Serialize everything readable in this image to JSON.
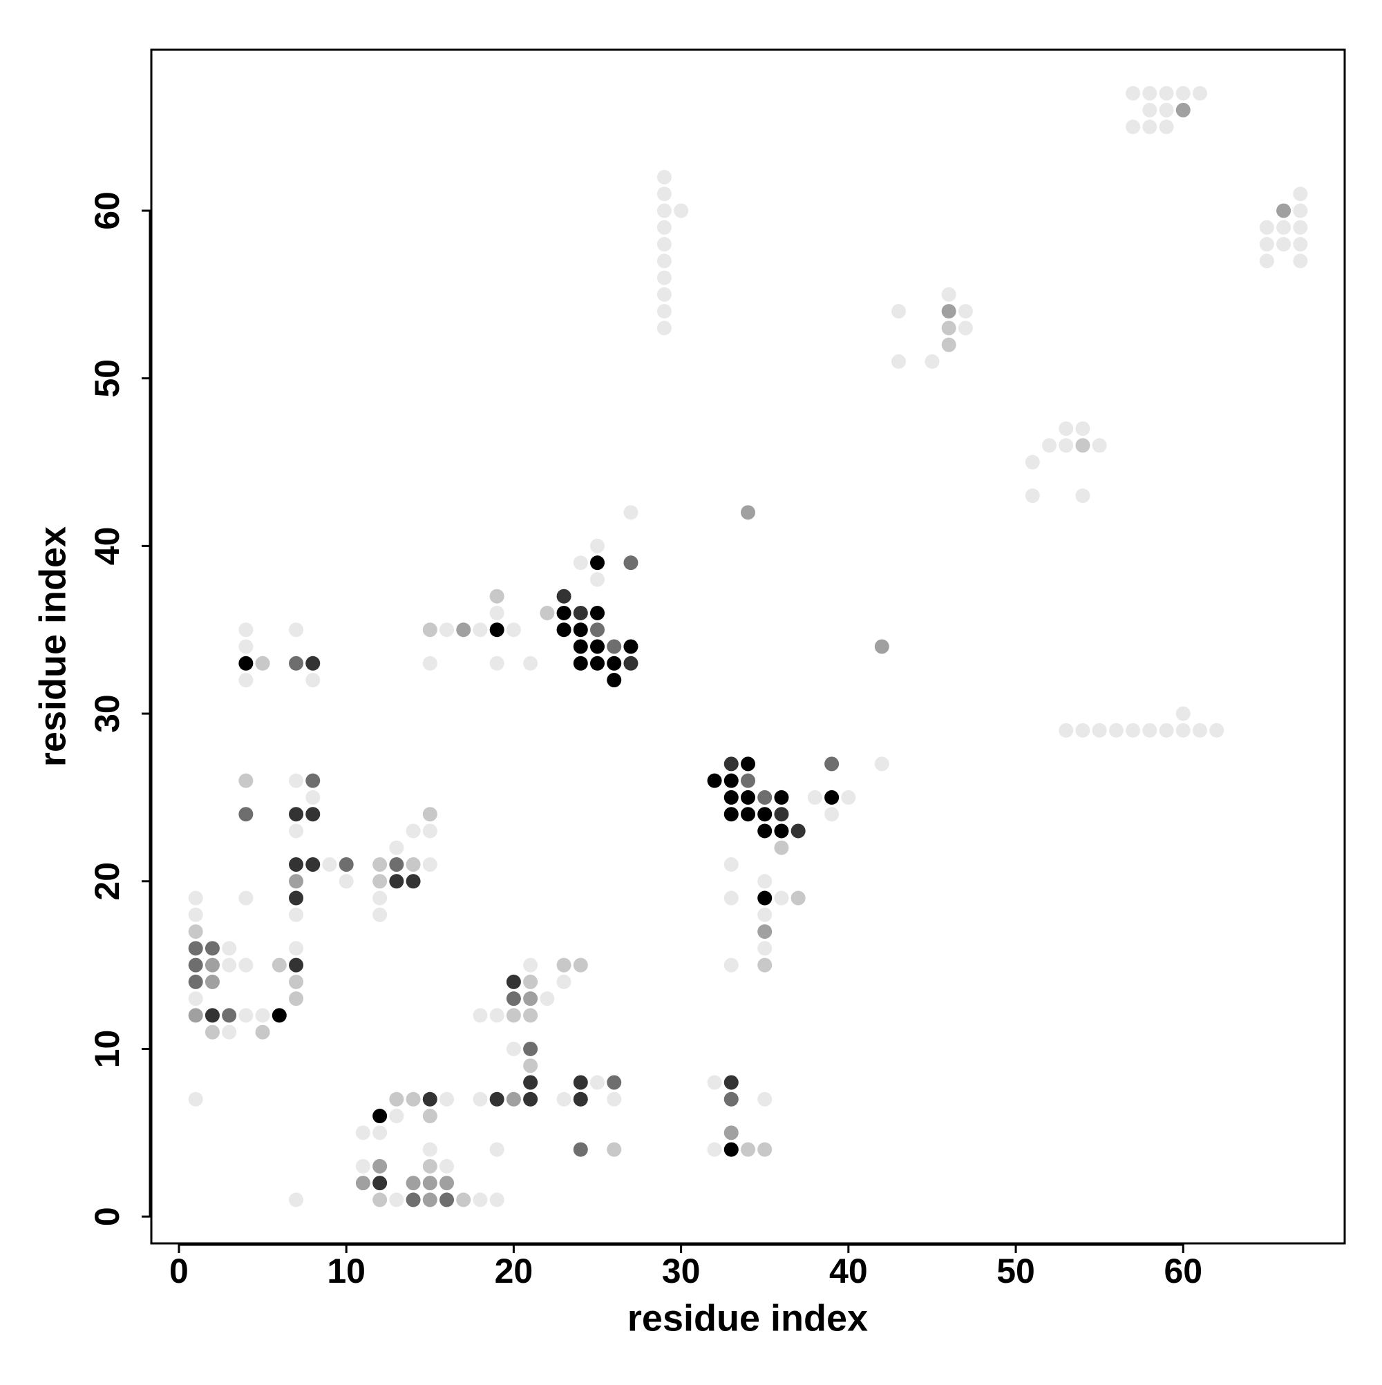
{
  "chart_data": {
    "type": "scatter",
    "xlabel": "residue index",
    "ylabel": "residue index",
    "xlim": [
      -1.65,
      69.65
    ],
    "ylim": [
      -1.6,
      69.6
    ],
    "xticks": [
      0,
      10,
      20,
      30,
      40,
      50,
      60
    ],
    "yticks": [
      0,
      10,
      20,
      30,
      40,
      50,
      60
    ],
    "grid": false,
    "series": [
      {
        "color": "#000000",
        "x": [
          33,
          12,
          6,
          35,
          35,
          36,
          33,
          34,
          35,
          33,
          34,
          36,
          39,
          32,
          33,
          34,
          26,
          4,
          24,
          25,
          26,
          24,
          25,
          27,
          19,
          23,
          24,
          23,
          25,
          25
        ],
        "y": [
          4,
          6,
          12,
          19,
          23,
          23,
          24,
          24,
          24,
          25,
          25,
          25,
          25,
          26,
          26,
          27,
          32,
          33,
          33,
          33,
          33,
          34,
          34,
          34,
          35,
          35,
          35,
          36,
          36,
          39
        ]
      },
      {
        "color": "#333333",
        "x": [
          12,
          15,
          19,
          21,
          24,
          21,
          24,
          33,
          2,
          20,
          7,
          7,
          13,
          14,
          7,
          8,
          37,
          7,
          8,
          36,
          33,
          8,
          27,
          24,
          23
        ],
        "y": [
          2,
          7,
          7,
          7,
          7,
          8,
          8,
          8,
          12,
          14,
          15,
          19,
          20,
          20,
          21,
          21,
          23,
          24,
          24,
          24,
          27,
          33,
          33,
          36,
          37
        ]
      },
      {
        "color": "#6e6e6e",
        "x": [
          14,
          16,
          24,
          33,
          26,
          21,
          3,
          20,
          1,
          1,
          1,
          2,
          10,
          13,
          4,
          35,
          8,
          34,
          39,
          7,
          26,
          25,
          27
        ],
        "y": [
          1,
          1,
          4,
          7,
          8,
          10,
          12,
          13,
          14,
          15,
          16,
          16,
          21,
          21,
          24,
          25,
          26,
          26,
          27,
          33,
          34,
          35,
          39
        ]
      },
      {
        "color": "#a0a0a0",
        "x": [
          15,
          11,
          14,
          15,
          16,
          12,
          33,
          20,
          1,
          21,
          2,
          2,
          35,
          7,
          42,
          17,
          34,
          46,
          66,
          60
        ],
        "y": [
          1,
          2,
          2,
          2,
          2,
          3,
          5,
          7,
          12,
          13,
          14,
          15,
          17,
          20,
          34,
          35,
          42,
          54,
          60,
          66
        ]
      },
      {
        "color": "#c8c8c8",
        "x": [
          12,
          17,
          15,
          26,
          34,
          35,
          15,
          13,
          14,
          21,
          2,
          5,
          20,
          21,
          7,
          7,
          21,
          6,
          23,
          24,
          35,
          1,
          37,
          12,
          12,
          14,
          36,
          15,
          4,
          5,
          15,
          22,
          19,
          54,
          46,
          46
        ],
        "y": [
          1,
          1,
          3,
          4,
          4,
          4,
          6,
          7,
          7,
          9,
          11,
          11,
          12,
          12,
          13,
          14,
          14,
          15,
          15,
          15,
          15,
          17,
          19,
          20,
          21,
          21,
          22,
          24,
          26,
          33,
          35,
          36,
          37,
          46,
          52,
          53
        ]
      },
      {
        "color": "#e8e8e8",
        "x": [
          7,
          13,
          18,
          19,
          11,
          16,
          15,
          19,
          32,
          11,
          12,
          13,
          1,
          16,
          18,
          23,
          26,
          35,
          25,
          32,
          20,
          3,
          4,
          5,
          18,
          19,
          1,
          22,
          23,
          3,
          4,
          21,
          33,
          3,
          7,
          35,
          1,
          7,
          12,
          35,
          1,
          4,
          12,
          33,
          36,
          10,
          35,
          9,
          15,
          33,
          13,
          7,
          14,
          15,
          39,
          8,
          38,
          40,
          7,
          42,
          53,
          54,
          55,
          56,
          57,
          58,
          59,
          60,
          61,
          62,
          60,
          4,
          8,
          15,
          19,
          21,
          4,
          4,
          7,
          16,
          18,
          20,
          19,
          25,
          24,
          25,
          27,
          51,
          54,
          51,
          52,
          53,
          55,
          53,
          54,
          43,
          45,
          29,
          47,
          29,
          43,
          47,
          29,
          46,
          29,
          29,
          29,
          29,
          29,
          29,
          29,
          30,
          65,
          67,
          65,
          66,
          67,
          65,
          66,
          67,
          67,
          67,
          57,
          58,
          59,
          58,
          59,
          57,
          58,
          59,
          60,
          61
        ],
        "y": [
          1,
          1,
          1,
          1,
          3,
          3,
          4,
          4,
          4,
          5,
          5,
          6,
          7,
          7,
          7,
          7,
          7,
          7,
          8,
          8,
          10,
          11,
          12,
          12,
          12,
          12,
          13,
          13,
          14,
          15,
          15,
          15,
          15,
          16,
          16,
          16,
          18,
          18,
          18,
          18,
          19,
          19,
          19,
          19,
          19,
          20,
          20,
          21,
          21,
          21,
          22,
          23,
          23,
          23,
          24,
          25,
          25,
          25,
          26,
          27,
          29,
          29,
          29,
          29,
          29,
          29,
          29,
          29,
          29,
          29,
          30,
          32,
          32,
          33,
          33,
          33,
          34,
          35,
          35,
          35,
          35,
          35,
          36,
          38,
          39,
          40,
          42,
          43,
          43,
          45,
          46,
          46,
          46,
          47,
          47,
          51,
          51,
          53,
          53,
          54,
          54,
          54,
          55,
          55,
          56,
          57,
          58,
          59,
          60,
          61,
          62,
          60,
          57,
          57,
          58,
          58,
          58,
          59,
          59,
          59,
          60,
          61,
          65,
          65,
          65,
          66,
          66,
          67,
          67,
          67,
          67,
          67
        ]
      }
    ]
  }
}
